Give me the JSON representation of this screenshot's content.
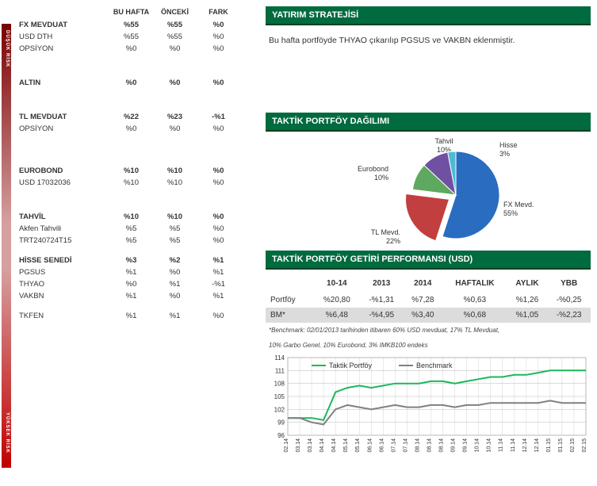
{
  "risk_rail": {
    "top_label": "DÜŞÜK RİSK",
    "bottom_label": "YÜKSEK RİSK"
  },
  "alloc_headers": [
    "BU HAFTA",
    "ÖNCEKİ",
    "FARK"
  ],
  "alloc_rows": [
    {
      "type": "group",
      "label": "FX MEVDUAT",
      "bu": "%55",
      "on": "%55",
      "fark": "%0"
    },
    {
      "type": "item",
      "label": "USD DTH",
      "bu": "%55",
      "on": "%55",
      "fark": "%0"
    },
    {
      "type": "item",
      "label": "OPSİYON",
      "bu": "%0",
      "on": "%0",
      "fark": "%0"
    },
    {
      "type": "spacer"
    },
    {
      "type": "group",
      "label": "ALTIN",
      "bu": "%0",
      "on": "%0",
      "fark": "%0"
    },
    {
      "type": "spacer"
    },
    {
      "type": "group",
      "label": "TL MEVDUAT",
      "bu": "%22",
      "on": "%23",
      "fark": "-%1"
    },
    {
      "type": "item",
      "label": "OPSİYON",
      "bu": "%0",
      "on": "%0",
      "fark": "%0"
    },
    {
      "type": "spacer"
    },
    {
      "type": "spacer-small"
    },
    {
      "type": "group",
      "label": "EUROBOND",
      "bu": "%10",
      "on": "%10",
      "fark": "%0"
    },
    {
      "type": "item",
      "label": "USD 17032036",
      "bu": "%10",
      "on": "%10",
      "fark": "%0"
    },
    {
      "type": "spacer"
    },
    {
      "type": "group",
      "label": "TAHVİL",
      "bu": "%10",
      "on": "%10",
      "fark": "%0"
    },
    {
      "type": "item",
      "label": "Akfen Tahvili",
      "bu": "%5",
      "on": "%5",
      "fark": "%0"
    },
    {
      "type": "item",
      "label": "TRT240724T15",
      "bu": "%5",
      "on": "%5",
      "fark": "%0"
    },
    {
      "type": "spacer-small"
    },
    {
      "type": "group",
      "label": "HİSSE SENEDİ",
      "bu": "%3",
      "on": "%2",
      "fark": "%1"
    },
    {
      "type": "item",
      "label": "PGSUS",
      "bu": "%1",
      "on": "%0",
      "fark": "%1"
    },
    {
      "type": "item",
      "label": "THYAO",
      "bu": "%0",
      "on": "%1",
      "fark": "-%1"
    },
    {
      "type": "item",
      "label": "VAKBN",
      "bu": "%1",
      "on": "%0",
      "fark": "%1"
    },
    {
      "type": "spacer-small"
    },
    {
      "type": "item",
      "label": "TKFEN",
      "bu": "%1",
      "on": "%1",
      "fark": "%0"
    }
  ],
  "strategy": {
    "title": "YATIRIM STRATEJİSİ",
    "body": "Bu hafta portföyde THYAO çıkarılıp PGSUS ve VAKBN eklenmiştir."
  },
  "pie": {
    "title": "TAKTİK PORTFÖY DAĞILIMI",
    "type": "pie",
    "slices": [
      {
        "label": "FX Mevd.",
        "pct_label": "55%",
        "value": 55,
        "color": "#2a6cc0"
      },
      {
        "label": "TL Mevd.",
        "pct_label": "22%",
        "value": 22,
        "color": "#c13f3f"
      },
      {
        "label": "Eurobond",
        "pct_label": "10%",
        "value": 10,
        "color": "#5fa85f"
      },
      {
        "label": "Tahvil",
        "pct_label": "10%",
        "value": 10,
        "color": "#7050a0"
      },
      {
        "label": "Hisse",
        "pct_label": "3%",
        "value": 3,
        "color": "#4dbbd6"
      }
    ],
    "pulled_slice_index": 1,
    "background_color": "#ffffff",
    "label_fontsize": 9
  },
  "perf": {
    "title": "TAKTİK PORTFÖY GETİRİ PERFORMANSI (USD)",
    "columns": [
      "",
      "10-14",
      "2013",
      "2014",
      "HAFTALIK",
      "AYLIK",
      "YBB"
    ],
    "rows": [
      {
        "label": "Portföy",
        "cells": [
          "%20,80",
          "-%1,31",
          "%7,28",
          "%0,63",
          "%1,26",
          "-%0,25"
        ]
      },
      {
        "label": "BM*",
        "cells": [
          "%6,48",
          "-%4,95",
          "%3,40",
          "%0,68",
          "%1,05",
          "-%2,23"
        ],
        "bm": true
      }
    ],
    "footnote1": "*Benchmark: 02/01/2013 tarihinden itibaren 60% USD mevduat, 17% TL Mevduat,",
    "footnote2": "10% Garbo Genel, 10% Eurobond, 3% IMKB100 endeks"
  },
  "line_chart": {
    "type": "line",
    "series": [
      {
        "name": "Taktik Portföy",
        "color": "#1bb85a",
        "width": 2,
        "y": [
          100,
          100,
          100,
          99.5,
          106,
          107,
          107.5,
          107,
          107.5,
          108,
          108,
          108,
          108.5,
          108.5,
          108,
          108.5,
          109,
          109.5,
          109.5,
          110,
          110,
          110.5,
          111,
          111,
          111,
          111
        ]
      },
      {
        "name": "Benchmark",
        "color": "#808080",
        "width": 2,
        "y": [
          100,
          100,
          99,
          98.5,
          102,
          103,
          102.5,
          102,
          102.5,
          103,
          102.5,
          102.5,
          103,
          103,
          102.5,
          103,
          103,
          103.5,
          103.5,
          103.5,
          103.5,
          103.5,
          104,
          103.5,
          103.5,
          103.5
        ]
      }
    ],
    "x_labels": [
      "02.14",
      "03.14",
      "03.14",
      "04.14",
      "04.14",
      "05.14",
      "05.14",
      "06.14",
      "06.14",
      "07.14",
      "07.14",
      "08.14",
      "08.14",
      "08.14",
      "09.14",
      "09.14",
      "10.14",
      "10.14",
      "11.14",
      "11.14",
      "12.14",
      "12.14",
      "01.15",
      "01.15",
      "02.15",
      "02.15"
    ],
    "ylim": [
      96,
      114
    ],
    "ytick_step": 3,
    "yticks": [
      96,
      99,
      102,
      105,
      108,
      111,
      114
    ],
    "grid_color": "#b8b8b8",
    "background_color": "#ffffff",
    "legend_position": "top-left",
    "label_fontsize": 8,
    "xlabel_rotate": 90
  }
}
